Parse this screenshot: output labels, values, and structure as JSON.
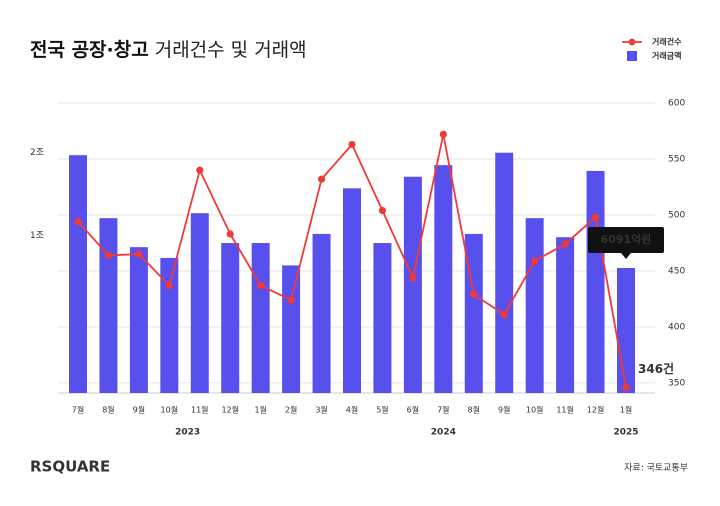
{
  "chart_data": {
    "type": "bar-line",
    "title": [
      "전국 공장·창고",
      "거래건수 및 거래액"
    ],
    "categories": [
      "7월",
      "8월",
      "9월",
      "10월",
      "11월",
      "12월",
      "1월",
      "2월",
      "3월",
      "4월",
      "5월",
      "6월",
      "7월",
      "8월",
      "9월",
      "10월",
      "11월",
      "12월",
      "1월"
    ],
    "x_groups": [
      "2023",
      "2024",
      "2025"
    ],
    "series": [
      {
        "name": "거래금액",
        "color": "#5850ec",
        "axis": "y",
        "values": [
          19700,
          12100,
          8600,
          7300,
          12700,
          9100,
          9100,
          6400,
          10200,
          15700,
          9100,
          17100,
          18500,
          10200,
          20000,
          12100,
          9800,
          17800,
          6091
        ],
        "value_labels": [
          null,
          null,
          null,
          null,
          null,
          null,
          null,
          null,
          null,
          null,
          null,
          null,
          null,
          null,
          null,
          null,
          null,
          null,
          "6091억원"
        ]
      },
      {
        "name": "거래건수",
        "color": "#f03a3a",
        "axis": "y2",
        "values": [
          494,
          464,
          465,
          437,
          540,
          483,
          437,
          424,
          532,
          563,
          504,
          444,
          572,
          429,
          411,
          459,
          474,
          498,
          346
        ],
        "value_labels": [
          null,
          null,
          null,
          null,
          null,
          null,
          null,
          null,
          null,
          null,
          null,
          null,
          null,
          null,
          null,
          null,
          null,
          null,
          "346건"
        ]
      }
    ],
    "ylim": [
      -9000,
      26000
    ],
    "yticks": [
      {
        "value": 10000,
        "label": "1조"
      },
      {
        "value": 20000,
        "label": "2조"
      }
    ],
    "y2lim": [
      341,
      600
    ],
    "y2ticks": [
      350,
      400,
      450,
      500,
      550,
      600
    ],
    "grid": true,
    "legend": "top-right",
    "brand": "RSQUARE",
    "source": "자료: 국토교통부"
  }
}
